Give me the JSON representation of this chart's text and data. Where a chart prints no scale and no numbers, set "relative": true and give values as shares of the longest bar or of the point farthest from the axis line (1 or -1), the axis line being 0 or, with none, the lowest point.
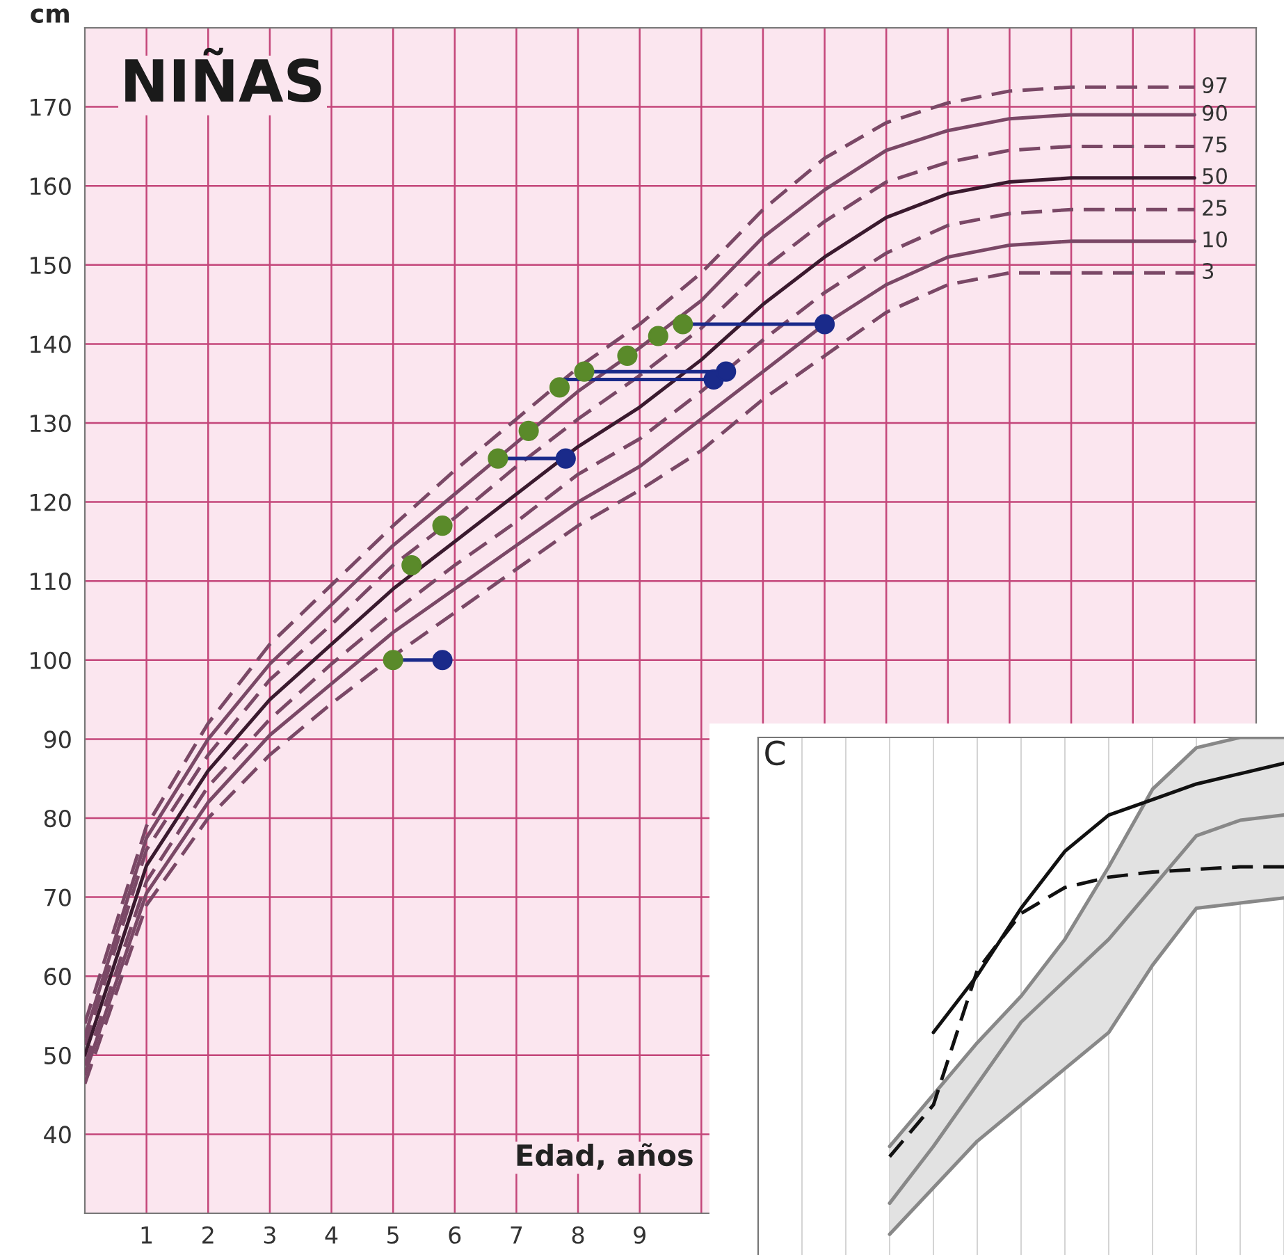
{
  "chart_data": [
    {
      "type": "line",
      "title": "NIÑAS",
      "ylabel": "cm",
      "xlabel": "Edad, años",
      "xlim": [
        0,
        19
      ],
      "ylim": [
        30,
        180
      ],
      "xticks": [
        1,
        2,
        3,
        4,
        5,
        6,
        7,
        8,
        9,
        {
          "value": 10,
          "label": null
        },
        {
          "value": 11,
          "label": null
        },
        {
          "value": 12,
          "label": null
        },
        {
          "value": 13,
          "label": null
        },
        {
          "value": 14,
          "label": null
        },
        {
          "value": 15,
          "label": null
        },
        {
          "value": 16,
          "label": null
        },
        {
          "value": 17,
          "label": null
        },
        {
          "value": 18,
          "label": null
        }
      ],
      "yticks": [
        40,
        50,
        60,
        70,
        80,
        90,
        100,
        110,
        120,
        130,
        140,
        150,
        160,
        170
      ],
      "grid": true,
      "x": [
        0,
        1,
        2,
        3,
        4,
        5,
        6,
        7,
        8,
        9,
        10,
        11,
        12,
        13,
        14,
        15,
        16,
        17,
        18
      ],
      "series": [
        {
          "name": "97",
          "color": "#7a4866",
          "line_style": "dashed",
          "values": [
            54,
            79,
            92,
            102,
            109.5,
            117,
            124,
            130.5,
            137,
            142.5,
            149,
            157,
            163.5,
            168,
            170.5,
            172,
            172.5,
            172.5,
            172.5
          ]
        },
        {
          "name": "90",
          "color": "#7a4866",
          "line_style": "solid",
          "values": [
            52.4,
            77.5,
            90,
            99.5,
            107,
            114.5,
            121,
            127.5,
            134,
            139.5,
            145.5,
            153.5,
            159.5,
            164.5,
            167,
            168.5,
            169,
            169,
            169
          ]
        },
        {
          "name": "75",
          "color": "#7a4866",
          "line_style": "dashed",
          "values": [
            51.3,
            76,
            88,
            97.5,
            104.5,
            112,
            118,
            124.5,
            130.5,
            136,
            142,
            149.5,
            155.5,
            160.5,
            163,
            164.5,
            165,
            165,
            165
          ]
        },
        {
          "name": "50",
          "color": "#3a1a2e",
          "line_style": "solid",
          "values": [
            50,
            74,
            86,
            95,
            102,
            109,
            115,
            121,
            127,
            132,
            138,
            145,
            151,
            156,
            159,
            160.5,
            161,
            161,
            161
          ]
        },
        {
          "name": "25",
          "color": "#7a4866",
          "line_style": "dashed",
          "values": [
            48.7,
            72,
            84,
            92.5,
            99.5,
            106,
            112,
            117.5,
            123.5,
            128,
            134,
            140.5,
            146.5,
            151.5,
            155,
            156.5,
            157,
            157,
            157
          ]
        },
        {
          "name": "10",
          "color": "#7a4866",
          "line_style": "solid",
          "values": [
            47.6,
            70.5,
            82,
            90.5,
            97,
            103.5,
            109,
            114.5,
            120,
            124.5,
            130.5,
            136.5,
            142.5,
            147.5,
            151,
            152.5,
            153,
            153,
            153
          ]
        },
        {
          "name": "3",
          "color": "#7a4866",
          "line_style": "dashed",
          "values": [
            46.4,
            69,
            80,
            88,
            94.5,
            100.5,
            106,
            111.5,
            117,
            121.5,
            126.5,
            133,
            138.5,
            144,
            147.5,
            149,
            149,
            149,
            149
          ]
        },
        {
          "type": "line",
          "color": "#1a2a8a",
          "x": [
            5.0,
            5.8
          ],
          "values": [
            100,
            100
          ]
        },
        {
          "type": "line",
          "color": "#1a2a8a",
          "x": [
            6.7,
            7.8
          ],
          "values": [
            125.5,
            125.5
          ]
        },
        {
          "type": "line",
          "color": "#1a2a8a",
          "x": [
            7.7,
            10.2
          ],
          "values": [
            135.5,
            135.5
          ]
        },
        {
          "type": "line",
          "color": "#1a2a8a",
          "x": [
            8.1,
            10.4
          ],
          "values": [
            136.5,
            136.5
          ]
        },
        {
          "type": "line",
          "color": "#1a2a8a",
          "x": [
            9.7,
            12.0
          ],
          "values": [
            142.5,
            142.5
          ]
        },
        {
          "type": "scatter",
          "color": "#5a8a2a",
          "marker": "circle",
          "x": [
            5.0,
            5.3,
            5.8,
            6.7,
            7.2,
            7.7,
            8.1,
            8.8,
            9.3,
            9.7
          ],
          "values": [
            100,
            112,
            117,
            125.5,
            129,
            134.5,
            136.5,
            138.5,
            141,
            142.5
          ]
        },
        {
          "type": "scatter",
          "color": "#1a2a8a",
          "marker": "circle",
          "x": [
            5.8,
            7.8,
            10.2,
            10.4,
            12.0
          ],
          "values": [
            100,
            125.5,
            135.5,
            136.5,
            142.5
          ]
        }
      ]
    },
    {
      "type": "line",
      "title": "C",
      "relative": true,
      "grid": true,
      "categories": [
        null,
        null,
        null,
        null,
        null,
        null,
        null,
        null,
        null,
        null,
        null,
        null,
        null
      ],
      "series": [
        {
          "color": "#888888",
          "values": [
            null,
            null,
            null,
            0.21,
            0.31,
            0.41,
            0.5,
            0.61,
            0.75,
            0.9,
            0.98,
            1.0,
            1.0
          ]
        },
        {
          "color": "#888888",
          "values": [
            null,
            null,
            null,
            0.04,
            0.13,
            0.22,
            0.29,
            0.36,
            0.43,
            0.56,
            0.67,
            0.68,
            0.69
          ]
        },
        {
          "color": "#888888",
          "values": [
            null,
            null,
            null,
            0.1,
            0.21,
            0.33,
            0.45,
            0.53,
            0.61,
            0.71,
            0.81,
            0.84,
            0.85
          ],
          "lower": [
            null,
            null,
            null,
            0.04,
            0.13,
            0.22,
            0.29,
            0.36,
            0.43,
            0.56,
            0.67,
            0.68,
            0.69
          ],
          "upper": [
            null,
            null,
            null,
            0.21,
            0.31,
            0.41,
            0.5,
            0.61,
            0.75,
            0.9,
            0.98,
            1.0,
            1.0
          ]
        },
        {
          "color": "#111111",
          "line_style": "solid",
          "values": [
            null,
            null,
            null,
            null,
            0.43,
            0.54,
            0.67,
            0.78,
            0.85,
            0.88,
            0.91,
            0.93,
            0.95
          ]
        },
        {
          "color": "#111111",
          "line_style": "dashed",
          "values": [
            null,
            null,
            null,
            0.19,
            0.29,
            0.55,
            0.66,
            0.71,
            0.73,
            0.74,
            0.745,
            0.75,
            0.75
          ]
        }
      ]
    }
  ]
}
